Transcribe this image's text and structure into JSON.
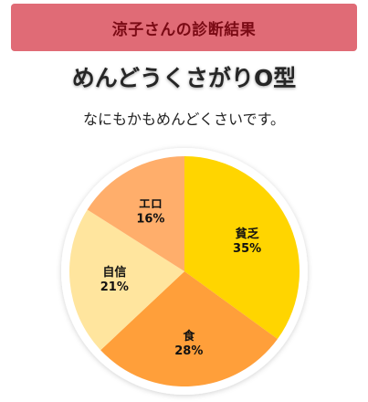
{
  "header": {
    "title": "涼子さんの診断結果",
    "background": "#e06b76",
    "text_color": "#7a0a14"
  },
  "result": {
    "title": "めんどうくさがりO型",
    "description": "なにもかもめんどくさいです。"
  },
  "chart_data": {
    "type": "pie",
    "title": "",
    "start": "top",
    "direction": "clockwise",
    "slices": [
      {
        "label": "貧乏",
        "value": 35,
        "value_label": "35%",
        "color": "#ffd500"
      },
      {
        "label": "食",
        "value": 28,
        "value_label": "28%",
        "color": "#ff9f3a"
      },
      {
        "label": "自信",
        "value": 21,
        "value_label": "21%",
        "color": "#ffe59e"
      },
      {
        "label": "エロ",
        "value": 16,
        "value_label": "16%",
        "color": "#ffae6b"
      }
    ]
  }
}
